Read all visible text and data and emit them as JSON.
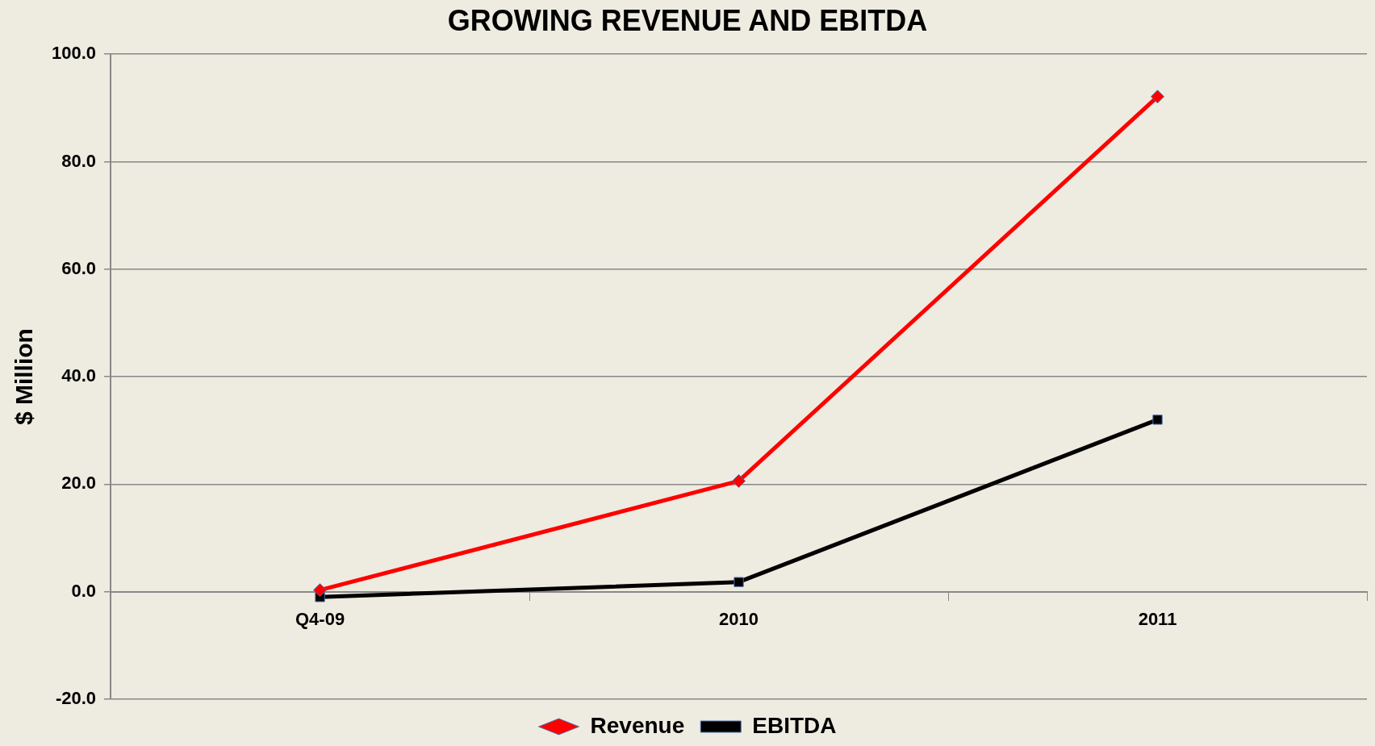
{
  "chart_data": {
    "type": "line",
    "title": "GROWING REVENUE AND EBITDA",
    "ylabel": "$ Million",
    "categories": [
      "Q4-09",
      "2010",
      "2011"
    ],
    "series": [
      {
        "name": "Revenue",
        "color": "#ff0000",
        "values": [
          0.3,
          20.6,
          92.1
        ],
        "marker": "diamond"
      },
      {
        "name": "EBITDA",
        "color": "#000000",
        "values": [
          -1.0,
          1.8,
          32.0
        ],
        "marker": "square"
      }
    ],
    "ylim": [
      -20,
      100
    ],
    "yticks": [
      {
        "value": -20,
        "label": "-20.0"
      },
      {
        "value": 0,
        "label": "0.0"
      },
      {
        "value": 20,
        "label": "20.0"
      },
      {
        "value": 40,
        "label": "40.0"
      },
      {
        "value": 60,
        "label": "60.0"
      },
      {
        "value": 80,
        "label": "80.0"
      },
      {
        "value": 100,
        "label": "100.0"
      }
    ],
    "grid": "y",
    "legend": "bottom",
    "line_style": "solid"
  }
}
